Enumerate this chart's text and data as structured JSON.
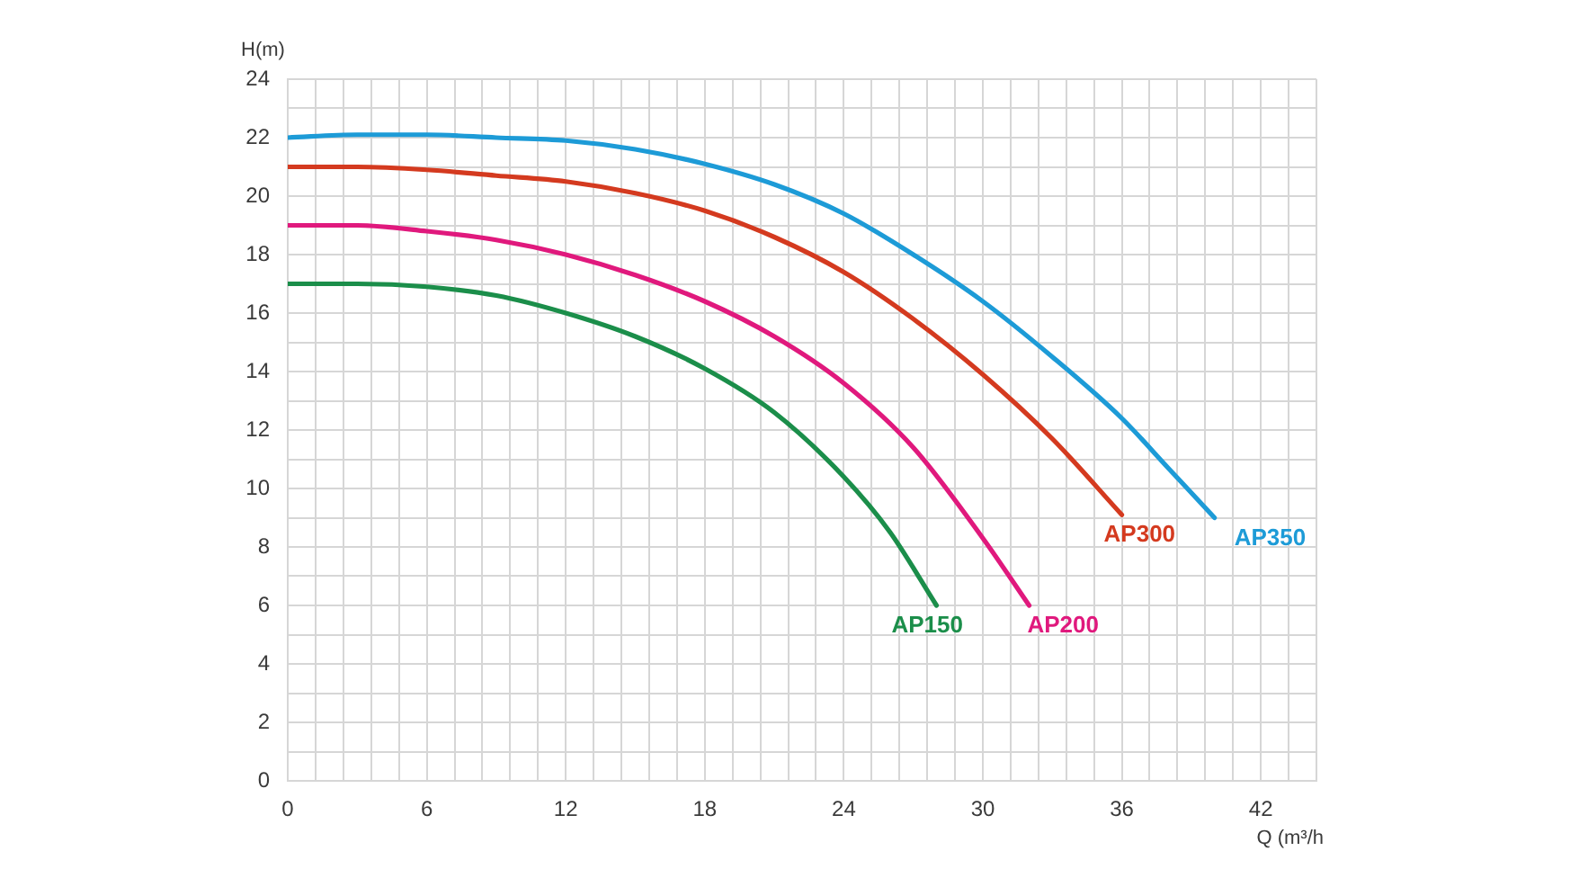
{
  "chart_data": {
    "type": "line",
    "xlabel": "Q (m³/h",
    "ylabel": "H(m)",
    "series": [
      {
        "name": "AP150",
        "color": "#1b8e4a",
        "x": [
          0,
          3,
          6,
          9,
          12,
          15,
          18,
          21,
          24,
          26,
          28
        ],
        "values": [
          17.0,
          17.0,
          16.9,
          16.6,
          16.0,
          15.2,
          14.1,
          12.6,
          10.4,
          8.5,
          6.0
        ]
      },
      {
        "name": "AP200",
        "color": "#e0197d",
        "x": [
          0,
          3,
          6,
          9,
          12,
          15,
          18,
          21,
          24,
          27,
          30,
          32
        ],
        "values": [
          19.0,
          19.0,
          18.8,
          18.5,
          18.0,
          17.3,
          16.4,
          15.2,
          13.6,
          11.4,
          8.3,
          6.0
        ]
      },
      {
        "name": "AP300",
        "color": "#d43a1f",
        "x": [
          0,
          3,
          6,
          9,
          12,
          15,
          18,
          21,
          24,
          27,
          30,
          33,
          36
        ],
        "values": [
          21.0,
          21.0,
          20.9,
          20.7,
          20.5,
          20.1,
          19.5,
          18.6,
          17.4,
          15.8,
          13.9,
          11.7,
          9.1
        ]
      },
      {
        "name": "AP350",
        "color": "#1d9bd7",
        "x": [
          0,
          3,
          6,
          9,
          12,
          15,
          18,
          21,
          24,
          27,
          30,
          33,
          36,
          38,
          40
        ],
        "values": [
          22.0,
          22.1,
          22.1,
          22.0,
          21.9,
          21.6,
          21.1,
          20.4,
          19.4,
          18.0,
          16.4,
          14.5,
          12.4,
          10.7,
          9.0
        ]
      }
    ],
    "xlim": [
      0,
      44.4
    ],
    "xticks": [
      0,
      {
        "value": 1.2,
        "label": null
      },
      {
        "value": 2.4,
        "label": null
      },
      {
        "value": 3.6,
        "label": null
      },
      {
        "value": 4.8,
        "label": null
      },
      6,
      {
        "value": 7.2,
        "label": null
      },
      {
        "value": 8.4,
        "label": null
      },
      {
        "value": 9.6,
        "label": null
      },
      {
        "value": 10.8,
        "label": null
      },
      12,
      {
        "value": 13.2,
        "label": null
      },
      {
        "value": 14.4,
        "label": null
      },
      {
        "value": 15.6,
        "label": null
      },
      {
        "value": 16.8,
        "label": null
      },
      18,
      {
        "value": 19.2,
        "label": null
      },
      {
        "value": 20.4,
        "label": null
      },
      {
        "value": 21.6,
        "label": null
      },
      {
        "value": 22.8,
        "label": null
      },
      24,
      {
        "value": 25.2,
        "label": null
      },
      {
        "value": 26.4,
        "label": null
      },
      {
        "value": 27.6,
        "label": null
      },
      {
        "value": 28.8,
        "label": null
      },
      30,
      {
        "value": 31.2,
        "label": null
      },
      {
        "value": 32.4,
        "label": null
      },
      {
        "value": 33.6,
        "label": null
      },
      {
        "value": 34.8,
        "label": null
      },
      36,
      {
        "value": 37.2,
        "label": null
      },
      {
        "value": 38.4,
        "label": null
      },
      {
        "value": 39.6,
        "label": null
      },
      {
        "value": 40.8,
        "label": null
      },
      42,
      {
        "value": 43.2,
        "label": null
      },
      {
        "value": 44.4,
        "label": null
      }
    ],
    "ylim": [
      0,
      24
    ],
    "yticks": [
      0,
      {
        "value": 1,
        "label": null
      },
      2,
      {
        "value": 3,
        "label": null
      },
      4,
      {
        "value": 5,
        "label": null
      },
      6,
      {
        "value": 7,
        "label": null
      },
      8,
      {
        "value": 9,
        "label": null
      },
      10,
      {
        "value": 11,
        "label": null
      },
      12,
      {
        "value": 13,
        "label": null
      },
      14,
      {
        "value": 15,
        "label": null
      },
      16,
      {
        "value": 17,
        "label": null
      },
      18,
      {
        "value": 19,
        "label": null
      },
      20,
      {
        "value": 21,
        "label": null
      },
      22,
      {
        "value": 23,
        "label": null
      },
      24
    ],
    "grid": true,
    "marker": "none"
  }
}
